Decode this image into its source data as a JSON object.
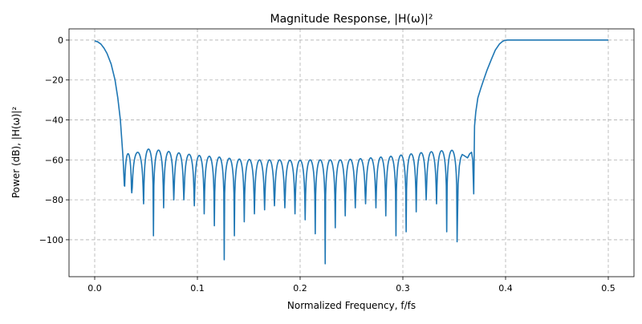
{
  "chart_data": {
    "type": "line",
    "title": "Magnitude Response, |H(ω)|²",
    "xlabel": "Normalized Frequency, f/fs",
    "ylabel": "Power (dB), |H(ω)|²",
    "xlim": [
      -0.025,
      0.525
    ],
    "ylim": [
      -118.5,
      5.6
    ],
    "xticks": [
      "0.0",
      "0.1",
      "0.2",
      "0.3",
      "0.4",
      "0.5"
    ],
    "xtick_values": [
      0,
      0.1,
      0.2,
      0.3,
      0.4,
      0.5
    ],
    "yticks": [
      "0",
      "−20",
      "−40",
      "−60",
      "−80",
      "−100"
    ],
    "ytick_values": [
      0,
      -20,
      -40,
      -60,
      -80,
      -100
    ],
    "grid": true,
    "line_color": "#1f77b4",
    "grid_color": "#b0b0b0",
    "passband_low": {
      "x": [
        0,
        0.003,
        0.006,
        0.009,
        0.012,
        0.016,
        0.0198,
        0.0225,
        0.025,
        0.0276
      ],
      "y": [
        -0.4,
        -0.9,
        -2,
        -4,
        -6.7,
        -12,
        -20,
        -29,
        -40,
        -59
      ]
    },
    "stopband": {
      "null_f": [
        0.0289,
        0.0361,
        0.0476,
        0.0572,
        0.0671,
        0.077,
        0.0868,
        0.097,
        0.1066,
        0.1165,
        0.1261,
        0.136,
        0.1456,
        0.1555,
        0.1654,
        0.175,
        0.1851,
        0.195,
        0.2049,
        0.2147,
        0.2244,
        0.2342,
        0.2439,
        0.2537,
        0.2637,
        0.2738,
        0.2834,
        0.2933,
        0.3032,
        0.313,
        0.3227,
        0.3328,
        0.3427,
        0.3528
      ],
      "null_db": [
        -73,
        -76.5,
        -82,
        -98,
        -84,
        -80,
        -80,
        -83,
        -87,
        -93,
        -110,
        -98,
        -91,
        -87,
        -85,
        -83,
        -84,
        -87,
        -90,
        -97,
        -112,
        -94,
        -88,
        -84,
        -82,
        -84,
        -88,
        -98,
        -96,
        -86,
        -80,
        -82,
        -96,
        -101
      ],
      "peak_db": [
        -56.9,
        -56.2,
        -54.6,
        -55.1,
        -55.8,
        -56.5,
        -57.2,
        -57.8,
        -58.2,
        -58.6,
        -59.2,
        -59.6,
        -59.8,
        -60,
        -60,
        -60,
        -60.2,
        -60.2,
        -60,
        -60,
        -60,
        -60,
        -59.7,
        -59.4,
        -59,
        -58.6,
        -58.2,
        -57.6,
        -57,
        -56.4,
        -55.9,
        -55.4,
        -55.2
      ]
    },
    "stopband_tail": {
      "x": [
        0.3538,
        0.355,
        0.3563,
        0.3578,
        0.36,
        0.363,
        0.365,
        0.3669,
        0.368,
        0.369
      ],
      "y": [
        -72,
        -63,
        -59,
        -57.3,
        -58,
        -59,
        -57,
        -56.2,
        -60,
        -77
      ]
    },
    "passband_high": {
      "x": [
        0.3698,
        0.371,
        0.373,
        0.376,
        0.3786,
        0.382,
        0.3864,
        0.39,
        0.394,
        0.397,
        0.399,
        0.402,
        0.5
      ],
      "y": [
        -43,
        -36,
        -29,
        -24,
        -20,
        -15,
        -9.4,
        -5,
        -2,
        -0.7,
        -0.2,
        0,
        0
      ]
    }
  }
}
